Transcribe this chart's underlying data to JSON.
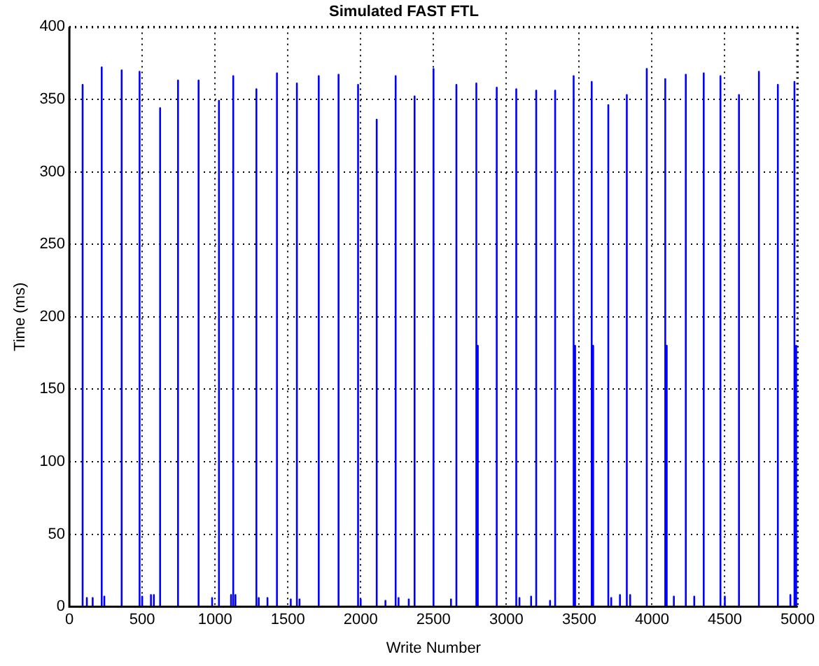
{
  "chart_data": {
    "type": "line",
    "title": "Simulated FAST FTL",
    "xlabel": "Write Number",
    "ylabel": "Time (ms)",
    "xlim": [
      0,
      5000
    ],
    "xticks": [
      0,
      500,
      1000,
      1500,
      2000,
      2500,
      3000,
      3500,
      4000,
      4500,
      5000
    ],
    "ylim": [
      0,
      400
    ],
    "yticks": [
      0,
      50,
      100,
      150,
      200,
      250,
      300,
      350,
      400
    ],
    "grid": true,
    "legend": false,
    "marker": "none",
    "line_style": "solid",
    "series": [
      {
        "color": "#0000ff",
        "x": [
          0,
          91,
          91,
          91,
          120,
          120,
          120,
          160,
          160,
          160,
          222,
          222,
          222,
          240,
          240,
          240,
          359,
          359,
          359,
          482,
          482,
          482,
          500,
          500,
          500,
          560,
          560,
          560,
          580,
          580,
          580,
          623,
          623,
          623,
          746,
          746,
          746,
          887,
          887,
          887,
          980,
          980,
          980,
          1027,
          1027,
          1027,
          1110,
          1110,
          1110,
          1125,
          1125,
          1125,
          1140,
          1140,
          1140,
          1284,
          1284,
          1284,
          1300,
          1300,
          1300,
          1360,
          1360,
          1360,
          1425,
          1425,
          1425,
          1520,
          1520,
          1520,
          1562,
          1562,
          1562,
          1580,
          1580,
          1580,
          1712,
          1712,
          1712,
          1848,
          1848,
          1848,
          1982,
          1982,
          1982,
          2000,
          2000,
          2000,
          2110,
          2110,
          2110,
          2170,
          2170,
          2170,
          2240,
          2240,
          2240,
          2260,
          2260,
          2260,
          2330,
          2330,
          2330,
          2370,
          2370,
          2370,
          2500,
          2500,
          2500,
          2620,
          2620,
          2620,
          2657,
          2657,
          2657,
          2794,
          2794,
          2794,
          2804,
          2804,
          2804,
          2934,
          2934,
          2934,
          3068,
          3068,
          3068,
          3090,
          3090,
          3090,
          3170,
          3170,
          3170,
          3205,
          3205,
          3205,
          3300,
          3300,
          3300,
          3335,
          3335,
          3335,
          3462,
          3462,
          3462,
          3472,
          3472,
          3472,
          3586,
          3586,
          3586,
          3596,
          3596,
          3596,
          3700,
          3700,
          3700,
          3720,
          3720,
          3720,
          3780,
          3780,
          3780,
          3827,
          3827,
          3827,
          3850,
          3850,
          3850,
          3964,
          3964,
          3964,
          4091,
          4091,
          4091,
          4101,
          4101,
          4101,
          4150,
          4150,
          4150,
          4232,
          4232,
          4232,
          4290,
          4290,
          4290,
          4355,
          4355,
          4355,
          4470,
          4470,
          4470,
          4500,
          4500,
          4500,
          4597,
          4597,
          4597,
          4734,
          4734,
          4734,
          4864,
          4864,
          4864,
          4950,
          4950,
          4950,
          4978,
          4978,
          4978,
          4990,
          4990,
          4990,
          5000
        ],
        "values": [
          0,
          0,
          360,
          0,
          0,
          6,
          0,
          0,
          6,
          0,
          0,
          372,
          0,
          0,
          7,
          0,
          0,
          370,
          0,
          0,
          369,
          0,
          0,
          7,
          0,
          0,
          8,
          0,
          0,
          8,
          0,
          0,
          344,
          0,
          0,
          363,
          0,
          0,
          363,
          0,
          0,
          6,
          0,
          0,
          349,
          0,
          0,
          8,
          0,
          0,
          366,
          0,
          0,
          8,
          0,
          0,
          357,
          0,
          0,
          6,
          0,
          0,
          6,
          0,
          0,
          368,
          0,
          0,
          5,
          0,
          0,
          361,
          0,
          0,
          5,
          0,
          0,
          366,
          0,
          0,
          367,
          0,
          0,
          360,
          0,
          0,
          5,
          0,
          0,
          336,
          0,
          0,
          4,
          0,
          0,
          366,
          0,
          0,
          6,
          0,
          0,
          5,
          0,
          0,
          352,
          0,
          0,
          371,
          0,
          0,
          5,
          0,
          0,
          360,
          0,
          0,
          361,
          0,
          0,
          180,
          0,
          0,
          358,
          0,
          0,
          357,
          0,
          0,
          6,
          0,
          0,
          7,
          0,
          0,
          356,
          0,
          0,
          4,
          0,
          0,
          356,
          0,
          0,
          366,
          0,
          0,
          180,
          0,
          0,
          362,
          0,
          0,
          180,
          0,
          0,
          346,
          0,
          0,
          6,
          0,
          0,
          8,
          0,
          0,
          353,
          0,
          0,
          8,
          0,
          0,
          371,
          0,
          0,
          364,
          0,
          0,
          180,
          0,
          0,
          7,
          0,
          0,
          367,
          0,
          0,
          7,
          0,
          0,
          368,
          0,
          0,
          366,
          0,
          0,
          7,
          0,
          0,
          353,
          0,
          0,
          369,
          0,
          0,
          360,
          0,
          0,
          8,
          0,
          0,
          362,
          0,
          0,
          180,
          0,
          0
        ]
      }
    ]
  }
}
